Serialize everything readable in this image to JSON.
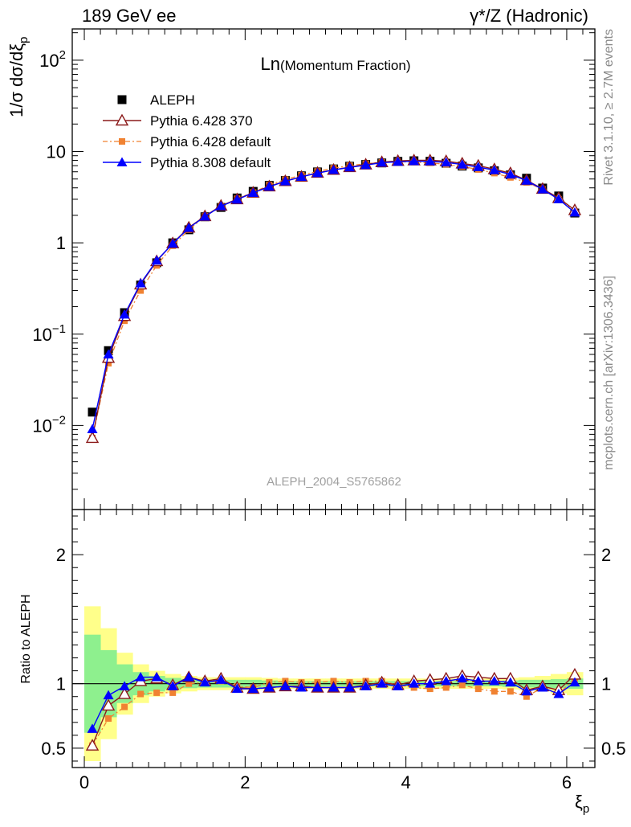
{
  "header": {
    "left": "189 GeV ee",
    "right": "γ*/Z (Hadronic)"
  },
  "side_labels": {
    "top": "Rivet 3.1.10, ≥ 2.7M events",
    "bottom": "mcplots.cern.ch [arXiv:1306.3436]"
  },
  "watermark": "ALEPH_2004_S5765862",
  "chart_data": [
    {
      "type": "scatter",
      "title_main": "Ln",
      "title_sub": "(Momentum Fraction)",
      "ylabel": "1/σ dσ/dξ",
      "ylabel_sub": "p",
      "yscale": "log",
      "ylim": [
        0.0012,
        220
      ],
      "xlim": [
        -0.15,
        6.35
      ],
      "yticks": [
        {
          "value": 0.01,
          "base": "10",
          "exp": "−2"
        },
        {
          "value": 0.1,
          "base": "10",
          "exp": "−1"
        },
        {
          "value": 1,
          "label": "1"
        },
        {
          "value": 10,
          "label": "10"
        },
        {
          "value": 100,
          "base": "10",
          "exp": "2"
        }
      ],
      "legend_position": "top-left",
      "x": [
        0.1,
        0.3,
        0.5,
        0.7,
        0.9,
        1.1,
        1.3,
        1.5,
        1.7,
        1.9,
        2.1,
        2.3,
        2.5,
        2.7,
        2.9,
        3.1,
        3.3,
        3.5,
        3.7,
        3.9,
        4.1,
        4.3,
        4.5,
        4.7,
        4.9,
        5.1,
        5.3,
        5.5,
        5.7,
        5.9,
        6.1
      ],
      "series": [
        {
          "name": "ALEPH",
          "color": "#000000",
          "marker": "square",
          "values": [
            0.014,
            0.066,
            0.172,
            0.345,
            0.605,
            1.0,
            1.39,
            1.93,
            2.44,
            3.1,
            3.66,
            4.26,
            4.82,
            5.42,
            5.98,
            6.45,
            6.9,
            7.22,
            7.5,
            7.8,
            7.92,
            7.82,
            7.44,
            6.92,
            6.62,
            6.15,
            5.55,
            5.1,
            3.98,
            3.26,
            2.12
          ]
        },
        {
          "name": "Pythia 6.428 370",
          "color": "#8b1a1a",
          "marker": "triangle-open",
          "values": [
            0.0073,
            0.055,
            0.158,
            0.35,
            0.63,
            0.99,
            1.47,
            1.96,
            2.55,
            3.0,
            3.55,
            4.15,
            4.75,
            5.3,
            5.85,
            6.3,
            6.75,
            7.2,
            7.65,
            7.9,
            8.0,
            8.0,
            7.85,
            7.4,
            7.0,
            6.4,
            5.8,
            4.85,
            3.9,
            3.1,
            2.28
          ]
        },
        {
          "name": "Pythia 6.428 default",
          "color": "#f08232",
          "marker": "square-small",
          "values": [
            0.0073,
            0.048,
            0.14,
            0.3,
            0.565,
            0.93,
            1.39,
            1.95,
            2.49,
            3.04,
            3.56,
            4.3,
            4.93,
            5.5,
            6.06,
            6.58,
            7.0,
            7.35,
            7.62,
            7.72,
            7.65,
            7.5,
            7.25,
            6.85,
            6.35,
            5.8,
            5.2,
            4.6,
            3.85,
            3.0,
            2.2
          ]
        },
        {
          "name": "Pythia 8.308 default",
          "color": "#0000ff",
          "marker": "triangle",
          "values": [
            0.0091,
            0.06,
            0.164,
            0.36,
            0.64,
            0.98,
            1.46,
            1.94,
            2.52,
            2.97,
            3.52,
            4.12,
            4.72,
            5.28,
            5.8,
            6.28,
            6.7,
            7.1,
            7.55,
            7.72,
            7.85,
            7.8,
            7.6,
            7.2,
            6.75,
            6.25,
            5.6,
            4.8,
            3.85,
            3.0,
            2.15
          ]
        }
      ]
    },
    {
      "type": "scatter",
      "ylabel": "Ratio to ALEPH",
      "xlabel": "ξ",
      "xlabel_sub": "p",
      "ylim": [
        0.35,
        2.35
      ],
      "xlim": [
        -0.15,
        6.35
      ],
      "xticks": [
        0,
        2,
        4,
        6
      ],
      "yticks": [
        0.5,
        1,
        2
      ],
      "reference_line": 1,
      "bands": {
        "x_edges": [
          0,
          0.2,
          0.4,
          0.6,
          0.8,
          1.0,
          1.2,
          1.4,
          1.6,
          1.8,
          2.0,
          2.2,
          2.4,
          2.6,
          2.8,
          3.0,
          3.2,
          3.4,
          3.6,
          3.8,
          4.0,
          4.2,
          4.4,
          4.6,
          4.8,
          5.0,
          5.2,
          5.4,
          5.6,
          5.8,
          6.0,
          6.2
        ],
        "stat_half": [
          0.38,
          0.26,
          0.15,
          0.09,
          0.06,
          0.045,
          0.035,
          0.03,
          0.03,
          0.03,
          0.03,
          0.025,
          0.02,
          0.02,
          0.02,
          0.02,
          0.02,
          0.02,
          0.02,
          0.02,
          0.02,
          0.02,
          0.02,
          0.02,
          0.02,
          0.02,
          0.025,
          0.03,
          0.03,
          0.035,
          0.04
        ],
        "total_half": [
          0.6,
          0.43,
          0.24,
          0.15,
          0.1,
          0.075,
          0.06,
          0.05,
          0.05,
          0.05,
          0.05,
          0.045,
          0.04,
          0.04,
          0.04,
          0.04,
          0.04,
          0.04,
          0.04,
          0.04,
          0.04,
          0.04,
          0.04,
          0.04,
          0.04,
          0.04,
          0.045,
          0.05,
          0.06,
          0.075,
          0.09
        ],
        "stat_color": "#8ef08e",
        "total_color": "#ffff8a"
      },
      "x": [
        0.1,
        0.3,
        0.5,
        0.7,
        0.9,
        1.1,
        1.3,
        1.5,
        1.7,
        1.9,
        2.1,
        2.3,
        2.5,
        2.7,
        2.9,
        3.1,
        3.3,
        3.5,
        3.7,
        3.9,
        4.1,
        4.3,
        4.5,
        4.7,
        4.9,
        5.1,
        5.3,
        5.5,
        5.7,
        5.9,
        6.1
      ],
      "series": [
        {
          "name": "Pythia 6.428 370",
          "color": "#8b1a1a",
          "marker": "triangle-open",
          "values": [
            0.52,
            0.83,
            0.92,
            1.02,
            1.04,
            0.99,
            1.05,
            1.02,
            1.04,
            0.97,
            0.96,
            0.97,
            0.98,
            0.98,
            0.97,
            0.97,
            0.97,
            0.99,
            1.01,
            0.99,
            1.02,
            1.03,
            1.04,
            1.06,
            1.05,
            1.04,
            1.04,
            0.95,
            0.98,
            0.95,
            1.07
          ]
        },
        {
          "name": "Pythia 6.428 default",
          "color": "#f08232",
          "marker": "square-small",
          "values": [
            0.52,
            0.73,
            0.82,
            0.92,
            0.93,
            0.93,
            1.0,
            1.01,
            1.02,
            0.98,
            0.97,
            1.01,
            1.02,
            1.01,
            1.01,
            1.02,
            1.01,
            1.02,
            1.02,
            0.99,
            0.97,
            0.96,
            0.97,
            0.99,
            0.96,
            0.94,
            0.94,
            0.9,
            0.97,
            0.92,
            1.04
          ]
        },
        {
          "name": "Pythia 8.308 default",
          "color": "#0000ff",
          "marker": "triangle",
          "values": [
            0.65,
            0.91,
            0.98,
            1.05,
            1.05,
            0.98,
            1.05,
            1.01,
            1.03,
            0.96,
            0.96,
            0.97,
            0.98,
            0.97,
            0.97,
            0.97,
            0.97,
            0.98,
            1.0,
            0.98,
            1.0,
            1.0,
            1.02,
            1.04,
            1.02,
            1.02,
            1.01,
            0.94,
            0.97,
            0.92,
            1.01
          ]
        }
      ]
    }
  ]
}
